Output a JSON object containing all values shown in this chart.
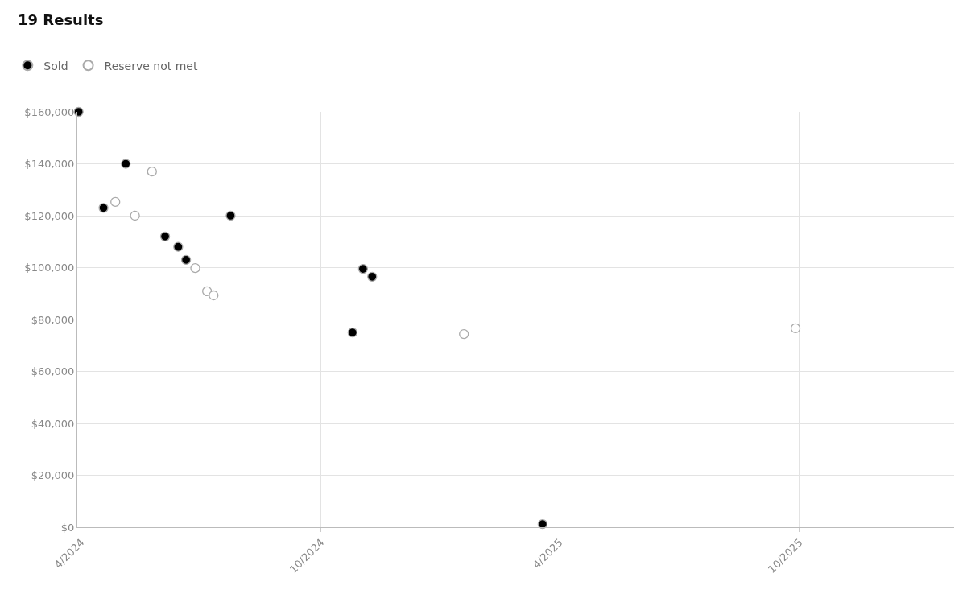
{
  "chart_data": {
    "type": "scatter",
    "title": "19 Results",
    "series": [
      {
        "name": "Sold",
        "color": "#000000",
        "x": [
          "2024-03-30",
          "2024-04-18",
          "2024-05-05",
          "2024-06-04",
          "2024-06-14",
          "2024-06-20",
          "2024-07-24",
          "2024-10-25",
          "2024-11-02",
          "2024-11-09",
          "2025-03-19"
        ],
        "values": [
          160000,
          123000,
          140000,
          112000,
          108000,
          103000,
          120000,
          75000,
          99500,
          96500,
          1200
        ]
      },
      {
        "name": "Reserve not met",
        "color": "#ffffff",
        "x": [
          "2024-04-27",
          "2024-05-12",
          "2024-05-25",
          "2024-06-27",
          "2024-07-06",
          "2024-07-11",
          "2025-01-18",
          "2025-09-28"
        ],
        "values": [
          125300,
          120000,
          137000,
          99800,
          90900,
          89300,
          74400,
          76600
        ]
      }
    ],
    "xlim": [
      "2024-03-29",
      "2026-01-27"
    ],
    "xticks": [
      {
        "value": "2024-04-01",
        "label": "4/2024"
      },
      {
        "value": "2024-10-01",
        "label": "10/2024"
      },
      {
        "value": "2025-04-01",
        "label": "4/2025"
      },
      {
        "value": "2025-10-01",
        "label": "10/2025"
      }
    ],
    "ylim": [
      0,
      160000
    ],
    "yticks": [
      {
        "value": 0,
        "label": "$0"
      },
      {
        "value": 20000,
        "label": "$20,000"
      },
      {
        "value": 40000,
        "label": "$40,000"
      },
      {
        "value": 60000,
        "label": "$60,000"
      },
      {
        "value": 80000,
        "label": "$80,000"
      },
      {
        "value": 100000,
        "label": "$100,000"
      },
      {
        "value": 120000,
        "label": "$120,000"
      },
      {
        "value": 140000,
        "label": "$140,000"
      },
      {
        "value": 160000,
        "label": "$160,000"
      }
    ],
    "grid": true,
    "legend": "top left",
    "marker": "circle"
  }
}
